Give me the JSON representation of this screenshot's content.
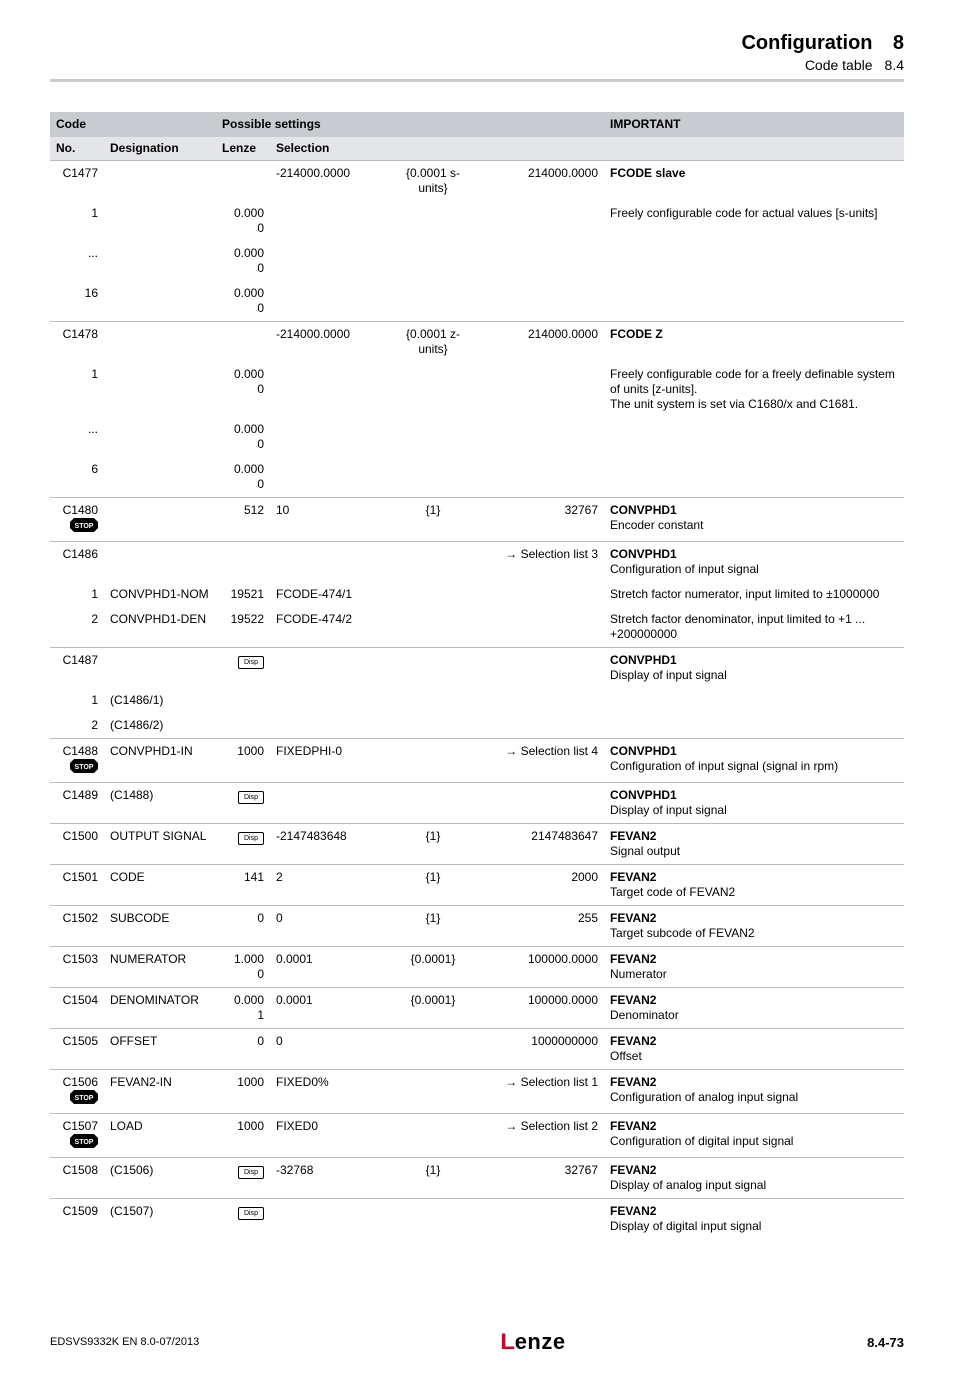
{
  "header": {
    "title": "Configuration",
    "subtitle": "Code table",
    "chapter": "8",
    "section": "8.4"
  },
  "colors": {
    "header_row": "#c8cbd0",
    "subheader_row": "#e3e5e8",
    "rule": "#b8bcc2"
  },
  "th": {
    "code": "Code",
    "possible": "Possible settings",
    "important": "IMPORTANT",
    "no": "No.",
    "designation": "Designation",
    "lenze": "Lenze",
    "selection": "Selection"
  },
  "disp_label": "Disp",
  "stop_svg_fill": "#000000",
  "stop_svg_text": "STOP",
  "rows": [
    {
      "grp": true,
      "c1": "C1477",
      "c3": "",
      "c4": "-214000.0000",
      "c5": "{0.0001 s-units}",
      "c6": "214000.0000",
      "c7": "<b>FCODE slave</b>"
    },
    {
      "c1": "1",
      "c3": "0.000\n0",
      "c7": "Freely configurable code for actual values [s-units]"
    },
    {
      "c1": "...",
      "c3": "0.000\n0"
    },
    {
      "c1": "16",
      "c3": "0.000\n0"
    },
    {
      "grp": true,
      "c1": "C1478",
      "c3": "",
      "c4": "-214000.0000",
      "c5": "{0.0001 z-units}",
      "c6": "214000.0000",
      "c7": "<b>FCODE Z</b>"
    },
    {
      "c1": "1",
      "c3": "0.000\n0",
      "c7": "Freely configurable code for a freely definable system of units [z-units].\nThe unit system is set via C1680/x and C1681."
    },
    {
      "c1": "...",
      "c3": "0.000\n0"
    },
    {
      "c1": "6",
      "c3": "0.000\n0"
    },
    {
      "grp": true,
      "stop": true,
      "c1": "C1480",
      "c3": "512",
      "c4": "10",
      "c5": "{1}",
      "c6": "32767",
      "c7": "<b>CONVPHD1</b>\nEncoder constant"
    },
    {
      "grp": true,
      "c1": "C1486",
      "c6": "→ Selection list 3",
      "c7": "<b>CONVPHD1</b>\nConfiguration of input signal"
    },
    {
      "c1": "1",
      "c2": "CONVPHD1-NOM",
      "c3": "19521",
      "c4": "FCODE-474/1",
      "c7": "Stretch factor numerator, input limited to ±1000000"
    },
    {
      "c1": "2",
      "c2": "CONVPHD1-DEN",
      "c3": "19522",
      "c4": "FCODE-474/2",
      "c7": "Stretch factor denominator, input limited to +1 ... +200000000"
    },
    {
      "grp": true,
      "disp": true,
      "c1": "C1487",
      "c7": "<b>CONVPHD1</b>\nDisplay of input signal"
    },
    {
      "c1": "1",
      "c2": "(C1486/1)"
    },
    {
      "c1": "2",
      "c2": "(C1486/2)"
    },
    {
      "grp": true,
      "stop": true,
      "c1": "C1488",
      "c2": "CONVPHD1-IN",
      "c3": "1000",
      "c4": "FIXEDPHI-0",
      "c6": "→ Selection list 4",
      "c7": "<b>CONVPHD1</b>\nConfiguration of input signal (signal in rpm)"
    },
    {
      "grp": true,
      "disp": true,
      "c1": "C1489",
      "c2": "(C1488)",
      "c7": "<b>CONVPHD1</b>\nDisplay of input signal"
    },
    {
      "grp": true,
      "disp": true,
      "c1": "C1500",
      "c2": "OUTPUT SIGNAL",
      "c4": "-2147483648",
      "c5": "{1}",
      "c6": "2147483647",
      "c7": "<b>FEVAN2</b>\nSignal output"
    },
    {
      "grp": true,
      "c1": "C1501",
      "c2": "CODE",
      "c3": "141",
      "c4": "2",
      "c5": "{1}",
      "c6": "2000",
      "c7": "<b>FEVAN2</b>\nTarget code of FEVAN2"
    },
    {
      "grp": true,
      "c1": "C1502",
      "c2": "SUBCODE",
      "c3": "0",
      "c4": "0",
      "c5": "{1}",
      "c6": "255",
      "c7": "<b>FEVAN2</b>\nTarget subcode of FEVAN2"
    },
    {
      "grp": true,
      "c1": "C1503",
      "c2": "NUMERATOR",
      "c3": "1.000\n0",
      "c4": "0.0001",
      "c5": "{0.0001}",
      "c6": "100000.0000",
      "c7": "<b>FEVAN2</b>\nNumerator"
    },
    {
      "grp": true,
      "c1": "C1504",
      "c2": "DENOMINATOR",
      "c3": "0.000\n1",
      "c4": "0.0001",
      "c5": "{0.0001}",
      "c6": "100000.0000",
      "c7": "<b>FEVAN2</b>\nDenominator"
    },
    {
      "grp": true,
      "c1": "C1505",
      "c2": "OFFSET",
      "c3": "0",
      "c4": "0",
      "c6": "1000000000",
      "c7": "<b>FEVAN2</b>\nOffset"
    },
    {
      "grp": true,
      "stop": true,
      "c1": "C1506",
      "c2": "FEVAN2-IN",
      "c3": "1000",
      "c4": "FIXED0%",
      "c6": "→ Selection list 1",
      "c7": "<b>FEVAN2</b>\nConfiguration of analog input signal"
    },
    {
      "grp": true,
      "stop": true,
      "c1": "C1507",
      "c2": "LOAD",
      "c3": "1000",
      "c4": "FIXED0",
      "c6": "→ Selection list 2",
      "c7": "<b>FEVAN2</b>\nConfiguration of digital input signal"
    },
    {
      "grp": true,
      "disp": true,
      "c1": "C1508",
      "c2": "(C1506)",
      "c4": "-32768",
      "c5": "{1}",
      "c6": "32767",
      "c7": "<b>FEVAN2</b>\nDisplay of analog input signal"
    },
    {
      "grp": true,
      "disp": true,
      "c1": "C1509",
      "c2": "(C1507)",
      "c7": "<b>FEVAN2</b>\nDisplay of digital input signal"
    }
  ],
  "footer": {
    "left": "EDSVS9332K  EN  8.0-07/2013",
    "brand": "Lenze",
    "page": "8.4-73"
  }
}
